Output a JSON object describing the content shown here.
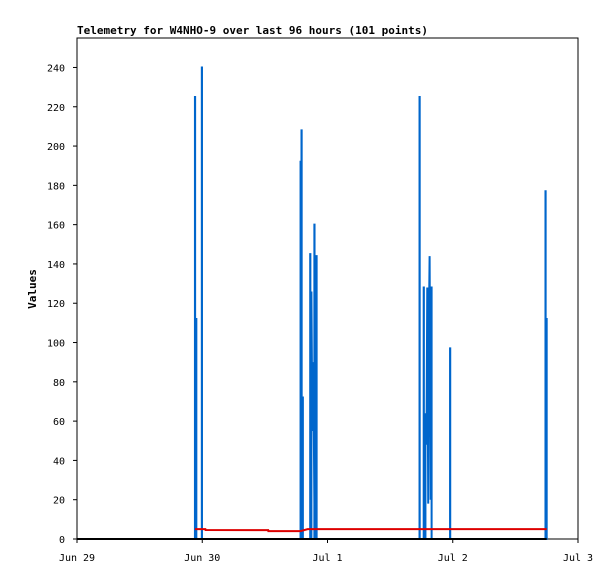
{
  "chart_data": {
    "type": "line",
    "title": "Telemetry for W4NHO-9 over last 96 hours (101 points)",
    "xlabel": "",
    "ylabel": "Values",
    "xlim": [
      "Jun 29 00:00",
      "Jul 3 00:00"
    ],
    "ylim": [
      0,
      255
    ],
    "x_ticks": [
      "Jun 29",
      "Jun 30",
      "Jul 1",
      "Jul 2",
      "Jul 3"
    ],
    "y_ticks": [
      0,
      20,
      40,
      60,
      80,
      100,
      120,
      140,
      160,
      180,
      200,
      220,
      240
    ],
    "grid": false,
    "legend": "none",
    "series": [
      {
        "color": "#0066cc",
        "points": [
          [
            "Jun 29 00:00",
            0
          ],
          [
            "Jun 29 22:36",
            0
          ],
          [
            "Jun 29 22:36",
            225
          ],
          [
            "Jun 29 22:38",
            225
          ],
          [
            "Jun 29 22:38",
            0
          ],
          [
            "Jun 29 22:50",
            0
          ],
          [
            "Jun 29 22:50",
            112
          ],
          [
            "Jun 29 22:52",
            112
          ],
          [
            "Jun 29 22:52",
            0
          ],
          [
            "Jun 29 23:55",
            0
          ],
          [
            "Jun 29 23:55",
            240
          ],
          [
            "Jun 29 23:57",
            240
          ],
          [
            "Jun 29 23:57",
            0
          ],
          [
            "Jun 30 18:50",
            0
          ],
          [
            "Jun 30 18:50",
            192
          ],
          [
            "Jun 30 18:52",
            192
          ],
          [
            "Jun 30 18:52",
            0
          ],
          [
            "Jun 30 19:01",
            0
          ],
          [
            "Jun 30 19:01",
            208
          ],
          [
            "Jun 30 19:03",
            208
          ],
          [
            "Jun 30 19:03",
            0
          ],
          [
            "Jun 30 19:15",
            0
          ],
          [
            "Jun 30 19:15",
            72
          ],
          [
            "Jun 30 19:17",
            72
          ],
          [
            "Jun 30 19:17",
            0
          ],
          [
            "Jun 30 20:41",
            0
          ],
          [
            "Jun 30 20:41",
            145
          ],
          [
            "Jun 30 20:43",
            145
          ],
          [
            "Jun 30 20:43",
            0
          ],
          [
            "Jun 30 20:55",
            0
          ],
          [
            "Jun 30 20:55",
            126
          ],
          [
            "Jun 30 21:06",
            55
          ],
          [
            "Jun 30 21:17",
            90
          ],
          [
            "Jun 30 21:29",
            18
          ],
          [
            "Jun 30 21:31",
            18
          ],
          [
            "Jun 30 21:31",
            0
          ],
          [
            "Jun 30 21:29",
            0
          ],
          [
            "Jun 30 21:29",
            160
          ],
          [
            "Jun 30 21:31",
            160
          ],
          [
            "Jun 30 21:31",
            0
          ],
          [
            "Jun 30 21:53",
            0
          ],
          [
            "Jun 30 21:53",
            144
          ],
          [
            "Jun 30 21:55",
            144
          ],
          [
            "Jun 30 21:55",
            0
          ],
          [
            "Jul 1 17:38",
            0
          ],
          [
            "Jul 1 17:38",
            225
          ],
          [
            "Jul 1 17:40",
            225
          ],
          [
            "Jul 1 17:40",
            0
          ],
          [
            "Jul 1 18:26",
            0
          ],
          [
            "Jul 1 18:26",
            128
          ],
          [
            "Jul 1 18:28",
            128
          ],
          [
            "Jul 1 18:28",
            0
          ],
          [
            "Jul 1 18:46",
            0
          ],
          [
            "Jul 1 18:46",
            64
          ],
          [
            "Jul 1 18:58",
            48
          ],
          [
            "Jul 1 19:07",
            128
          ],
          [
            "Jul 1 19:18",
            18
          ],
          [
            "Jul 1 19:22",
            93
          ],
          [
            "Jul 1 19:34",
            144
          ],
          [
            "Jul 1 19:46",
            20
          ],
          [
            "Jul 1 19:55",
            128
          ],
          [
            "Jul 1 19:57",
            128
          ],
          [
            "Jul 1 19:57",
            0
          ],
          [
            "Jul 1 23:29",
            0
          ],
          [
            "Jul 1 23:29",
            97
          ],
          [
            "Jul 1 23:31",
            97
          ],
          [
            "Jul 1 23:31",
            0
          ],
          [
            "Jul 2 17:46",
            0
          ],
          [
            "Jul 2 17:46",
            177
          ],
          [
            "Jul 2 17:48",
            177
          ],
          [
            "Jul 2 17:48",
            0
          ],
          [
            "Jul 2 17:58",
            0
          ],
          [
            "Jul 2 17:58",
            112
          ],
          [
            "Jul 2 18:00",
            112
          ],
          [
            "Jul 2 18:00",
            0
          ],
          [
            "Jul 2 18:00",
            0
          ]
        ]
      },
      {
        "color": "#dd0000",
        "points": [
          [
            "Jun 29 22:36",
            5.0
          ],
          [
            "Jun 30 00:36",
            5.0
          ],
          [
            "Jun 30 00:38",
            4.6
          ],
          [
            "Jun 30 12:38",
            4.5
          ],
          [
            "Jun 30 12:40",
            4.0
          ],
          [
            "Jun 30 18:50",
            4.0
          ],
          [
            "Jun 30 20:12",
            5.0
          ],
          [
            "Jul 2 18:00",
            5.0
          ]
        ]
      },
      {
        "color": "#000000",
        "points": [
          [
            "Jun 29 00:00",
            0
          ],
          [
            "Jul 2 18:00",
            0
          ]
        ]
      }
    ]
  }
}
